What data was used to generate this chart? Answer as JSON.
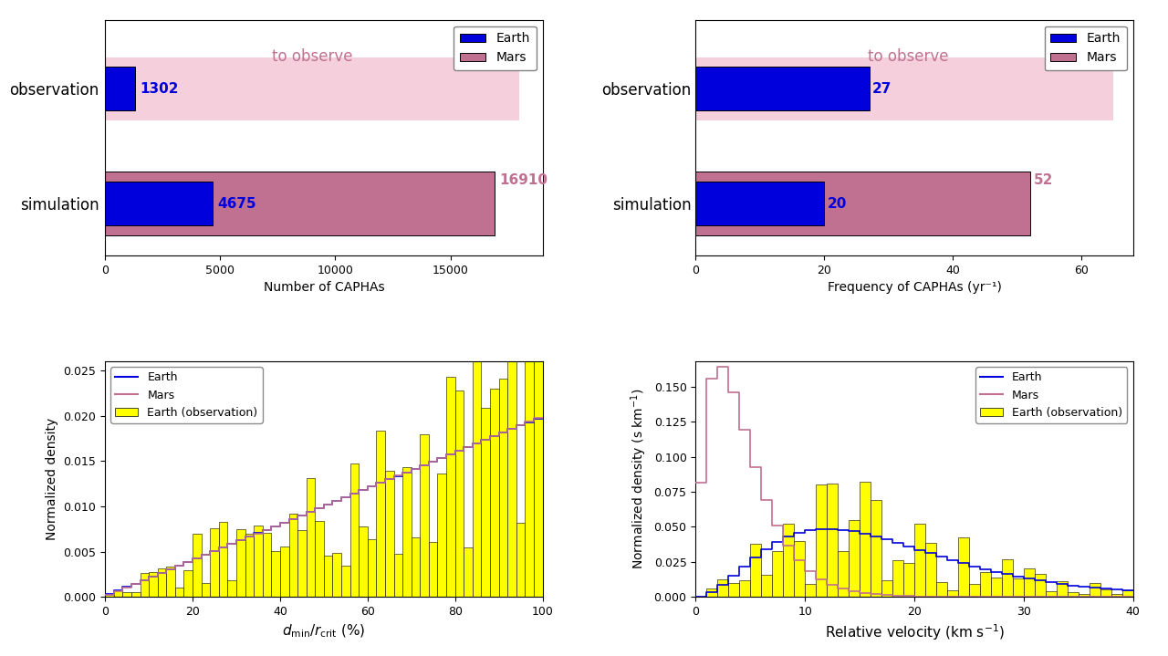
{
  "bar1": {
    "earth_obs": 1302,
    "earth_sim": 4675,
    "mars_sim": 16910,
    "mars_obs_bg": 18000,
    "xlabel": "Number of CAPHAs",
    "xlim": [
      0,
      19000
    ],
    "xticks": [
      0,
      5000,
      10000,
      15000
    ],
    "earth_color": "#0000dd",
    "mars_color": "#c07090",
    "mars_bg_color": "#f5d0dc"
  },
  "bar2": {
    "earth_obs": 27,
    "earth_sim": 20,
    "mars_sim": 52,
    "mars_obs_bg": 65,
    "xlabel": "Frequency of CAPHAs (yr⁻¹)",
    "xlim": [
      0,
      68
    ],
    "xticks": [
      0,
      20,
      40,
      60
    ],
    "earth_color": "#0000dd",
    "mars_color": "#c07090",
    "mars_bg_color": "#f5d0dc"
  },
  "hist1": {
    "xlabel": "$d_{\\mathrm{min}}/r_{\\mathrm{crit}}$ (%)",
    "ylabel": "Normalized density",
    "xlim": [
      0,
      100
    ],
    "ylim": [
      0,
      0.026
    ],
    "yticks": [
      0.0,
      0.005,
      0.01,
      0.015,
      0.02,
      0.025
    ],
    "xticks": [
      0,
      20,
      40,
      60,
      80,
      100
    ]
  },
  "hist2": {
    "xlabel": "Relative velocity (km s$^{-1}$)",
    "ylabel": "Normalized density (s km$^{-1}$)",
    "xlim": [
      0,
      40
    ],
    "ylim": [
      0,
      0.168
    ],
    "yticks": [
      0.0,
      0.025,
      0.05,
      0.075,
      0.1,
      0.125,
      0.15
    ],
    "xticks": [
      0,
      10,
      20,
      30,
      40
    ]
  },
  "earth_color": "#0000dd",
  "mars_color": "#c07090",
  "mars_bg": "#f5d0dc",
  "obs_color": "#ffff00"
}
